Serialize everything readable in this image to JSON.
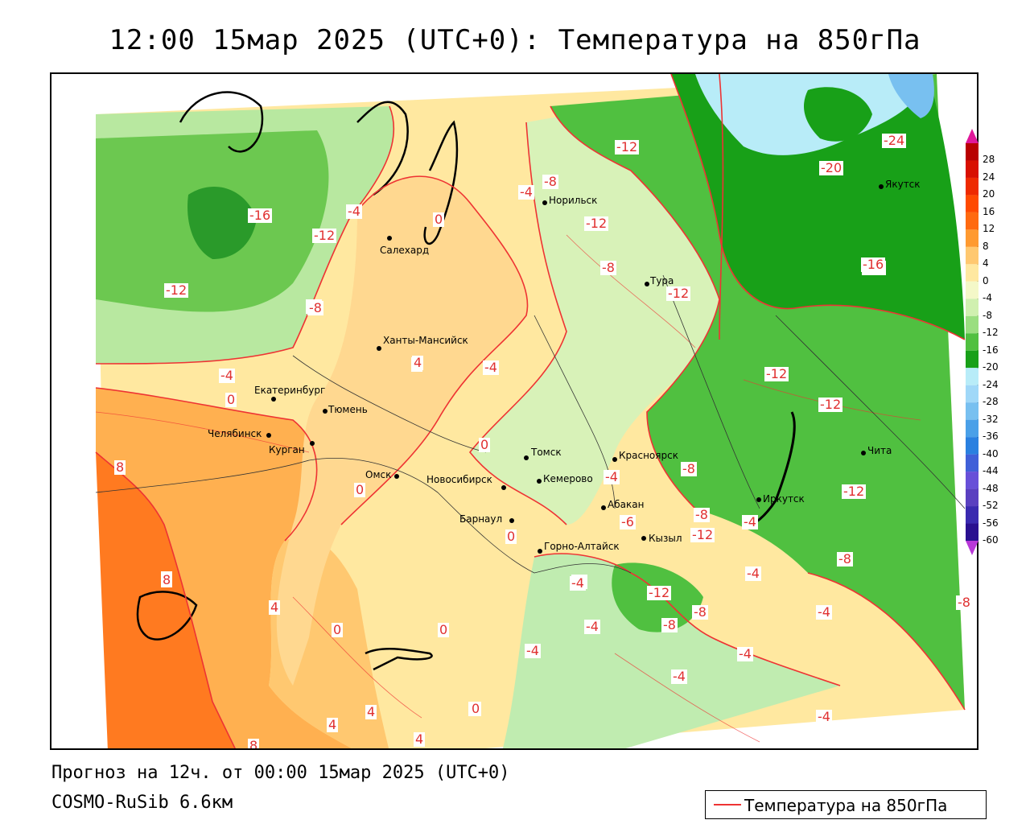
{
  "title": "12:00 15мар 2025 (UTC+0): Температура на 850гПа",
  "forecast_info": "Прогноз на 12ч. от 00:00 15мар 2025 (UTC+0)",
  "model_name": "COSMO-RuSib 6.6км",
  "legend": {
    "line_label": "Температура на 850гПа",
    "line_color": "#ee3333"
  },
  "colorbar": {
    "labels": [
      "28",
      "24",
      "20",
      "16",
      "12",
      "8",
      "4",
      "0",
      "-4",
      "-8",
      "-12",
      "-16",
      "-20",
      "-24",
      "-28",
      "-32",
      "-36",
      "-40",
      "-44",
      "-48",
      "-52",
      "-56",
      "-60"
    ],
    "colors": [
      "#b80000",
      "#d81000",
      "#ee2a00",
      "#ff4a00",
      "#ff6a10",
      "#ff9a30",
      "#ffc870",
      "#ffe8a0",
      "#f4f8c8",
      "#d0f0b0",
      "#9ade80",
      "#50c040",
      "#18a018",
      "#b8ecf8",
      "#a0d8f8",
      "#78c0f0",
      "#4aa0e8",
      "#2a80e0",
      "#4060d8",
      "#6850d8",
      "#5a40c0",
      "#3a2ab0",
      "#2a1090"
    ],
    "top_arrow_color": "#e0189a",
    "bottom_arrow_color": "#b838d8"
  },
  "cities": [
    {
      "name": "Салехард"
    },
    {
      "name": "Норильск"
    },
    {
      "name": "Тура"
    },
    {
      "name": "Якутск"
    },
    {
      "name": "Ханты-Мансийск"
    },
    {
      "name": "Екатеринбург"
    },
    {
      "name": "Тюмень"
    },
    {
      "name": "Челябинск"
    },
    {
      "name": "Курган"
    },
    {
      "name": "Омск"
    },
    {
      "name": "Новосибирск"
    },
    {
      "name": "Томск"
    },
    {
      "name": "Кемерово"
    },
    {
      "name": "Красноярск"
    },
    {
      "name": "Барнаул"
    },
    {
      "name": "Абакан"
    },
    {
      "name": "Иркутск"
    },
    {
      "name": "Чита"
    },
    {
      "name": "Кызыл"
    },
    {
      "name": "Горно-Алтайск"
    }
  ],
  "contour_labels": [
    "-16",
    "-12",
    "-8",
    "-4",
    "0",
    "4",
    "8",
    "-12",
    "-16",
    "-20",
    "-24",
    "-12",
    "-8",
    "-4",
    "-8",
    "-12",
    "-8",
    "-12",
    "-16",
    "-12",
    "-4",
    "-4",
    "4",
    "0",
    "0",
    "-4",
    "0",
    "0",
    "-4",
    "-12",
    "-12",
    "-8",
    "-8",
    "-12",
    "-8",
    "-4",
    "-6",
    "-4",
    "4",
    "8",
    "0",
    "0",
    "4",
    "8",
    "4",
    "0",
    "-4",
    "-4",
    "-4",
    "-8",
    "-8",
    "-12",
    "-4",
    "-4",
    "-4",
    "-8",
    "-4",
    "4",
    "0",
    "8"
  ]
}
